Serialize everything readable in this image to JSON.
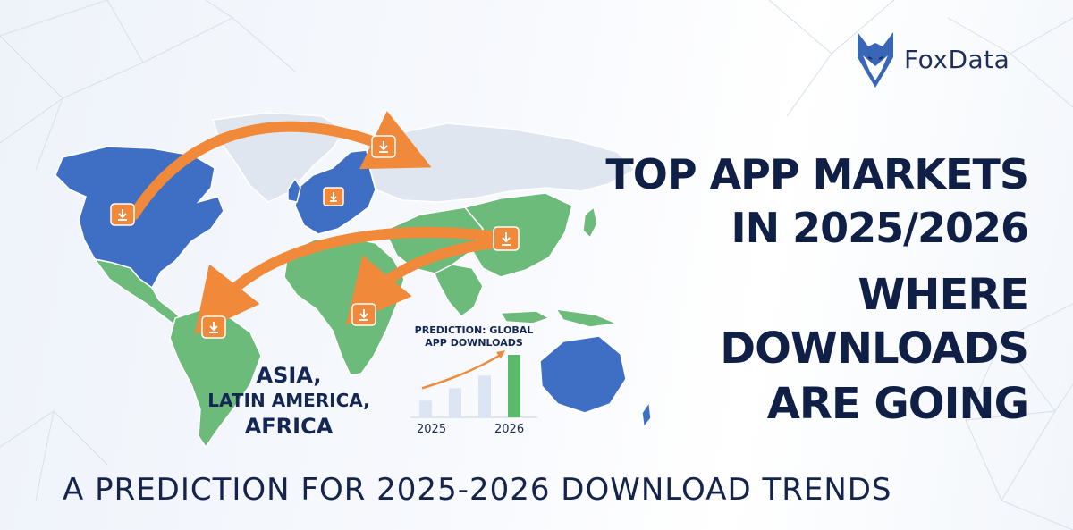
{
  "brand": {
    "name": "FoxData"
  },
  "headline": {
    "line1": "TOP APP MARKETS",
    "line2": "IN 2025/2026",
    "line3": "WHERE",
    "line4": "DOWNLOADS",
    "line5": "ARE GOING"
  },
  "regions": {
    "line1": "ASIA,",
    "line2": "LATIN AMERICA,",
    "line3": "AFRICA"
  },
  "chart_data": {
    "type": "bar",
    "title": "PREDICTION: GLOBAL APP DOWNLOADS",
    "categories": [
      "",
      "",
      "",
      ""
    ],
    "values": [
      2,
      3.5,
      5,
      7.5
    ],
    "x_labels": [
      "2025",
      "2026"
    ],
    "trend_arrow": true,
    "colors": [
      "#dbe5f3",
      "#dbe5f3",
      "#dbe5f3",
      "#5cb86a"
    ]
  },
  "subtitle": "A PREDICTION FOR 2025-2026 DOWNLOAD TRENDS",
  "colors": {
    "highlight_blue": "#3f6fc4",
    "growth_green": "#6dbb7b",
    "neutral_land": "#dfe6f0",
    "arrow_orange": "#f08a3a",
    "text_navy": "#0f1f45"
  },
  "icons": [
    "fox-logo-icon",
    "download-icon"
  ]
}
